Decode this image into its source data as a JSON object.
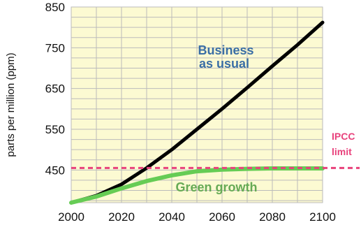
{
  "chart_data": {
    "type": "line",
    "title": "",
    "xlabel": "",
    "ylabel": "parts per million (ppm)",
    "xlim": [
      2000,
      2100
    ],
    "ylim": [
      370,
      850
    ],
    "x_ticks": [
      "2000",
      "2020",
      "2040",
      "2060",
      "2080",
      "2100"
    ],
    "y_ticks": [
      "450",
      "550",
      "650",
      "750",
      "850"
    ],
    "grid": true,
    "series": [
      {
        "name": "Business as usual",
        "color": "#000000",
        "x": [
          2000,
          2010,
          2020,
          2030,
          2040,
          2050,
          2060,
          2070,
          2080,
          2090,
          2100
        ],
        "y": [
          370,
          387,
          415,
          455,
          500,
          550,
          600,
          652,
          705,
          757,
          812
        ]
      },
      {
        "name": "Green growth",
        "color": "#66cc55",
        "x": [
          2000,
          2010,
          2020,
          2030,
          2040,
          2050,
          2060,
          2070,
          2080,
          2090,
          2100
        ],
        "y": [
          370,
          385,
          405,
          423,
          437,
          447,
          451,
          453,
          454,
          454,
          454
        ]
      }
    ],
    "reference_line": {
      "label_line1": "IPCC",
      "label_line2": "limit",
      "value": 455,
      "color": "#e8427c"
    },
    "annotations": {
      "business_line1": "Business",
      "business_line2": "as usual",
      "business_color": "#3a6ea5",
      "green": "Green growth",
      "green_color": "#66aa55"
    },
    "plot_background": "#fcfad2",
    "grid_color": "#bbbbbb"
  }
}
